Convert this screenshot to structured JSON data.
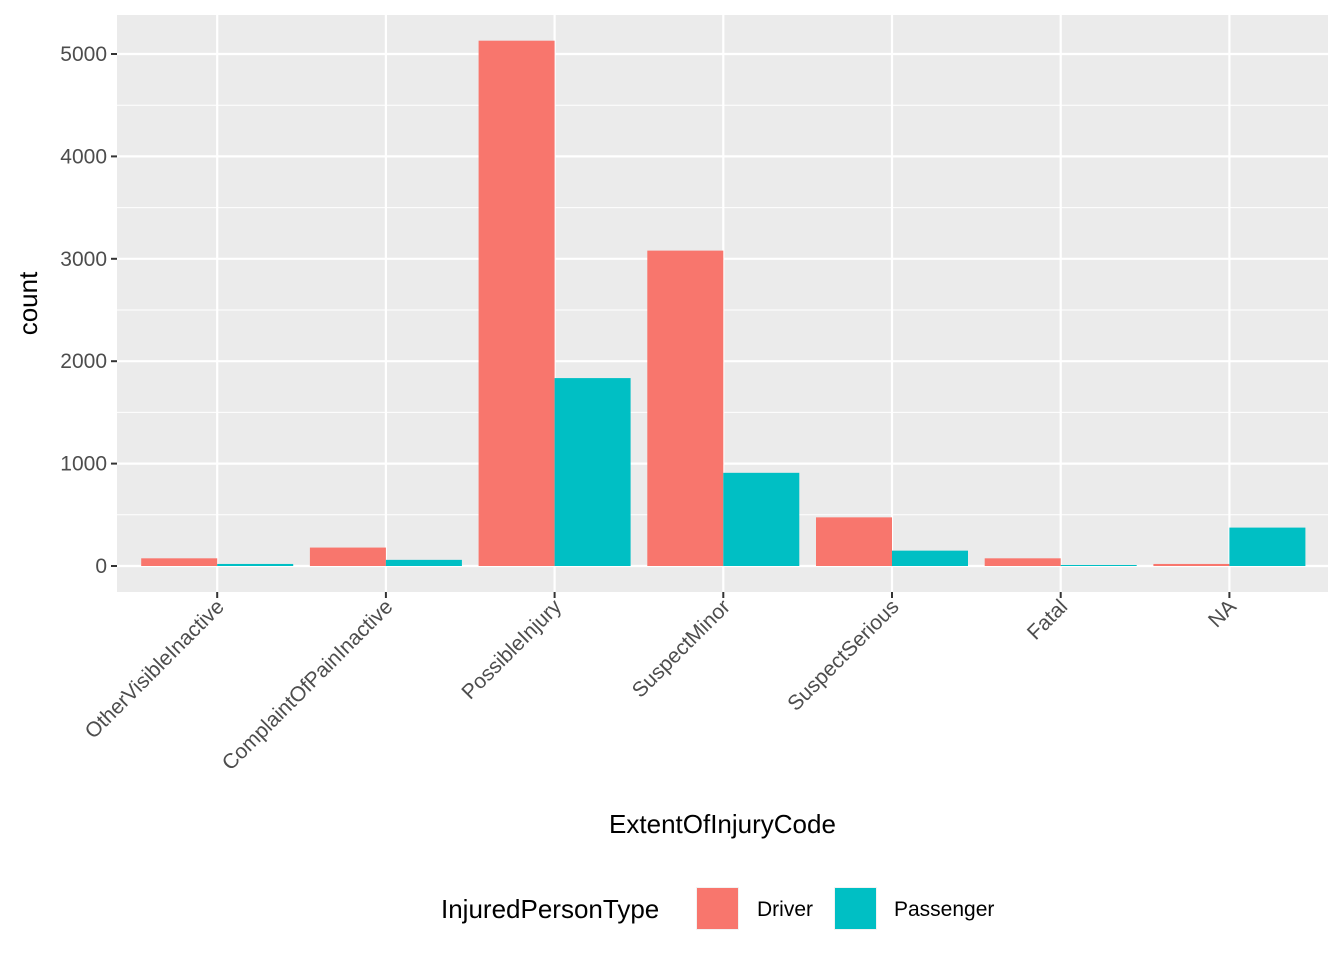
{
  "chart_data": {
    "type": "bar",
    "xlabel": "ExtentOfInjuryCode",
    "ylabel": "count",
    "categories": [
      "OtherVisibleInactive",
      "ComplaintOfPainInactive",
      "PossibleInjury",
      "SuspectMinor",
      "SuspectSerious",
      "Fatal",
      "NA"
    ],
    "series": [
      {
        "name": "Driver",
        "color": "#F8766D",
        "values": [
          75,
          180,
          5130,
          3080,
          475,
          75,
          20
        ]
      },
      {
        "name": "Passenger",
        "color": "#00BFC4",
        "values": [
          20,
          60,
          1835,
          910,
          150,
          10,
          375
        ]
      }
    ],
    "ylim": [
      -250,
      5380
    ],
    "yticks": [
      0,
      1000,
      2000,
      3000,
      4000,
      5000
    ],
    "ytick_labels": [
      "0",
      "1000",
      "2000",
      "3000",
      "4000",
      "5000"
    ],
    "grid": true,
    "panel_background": "#EBEBEB",
    "legend": {
      "title": "InjuredPersonType",
      "position": "bottom",
      "labels": [
        "Driver",
        "Passenger"
      ]
    }
  }
}
